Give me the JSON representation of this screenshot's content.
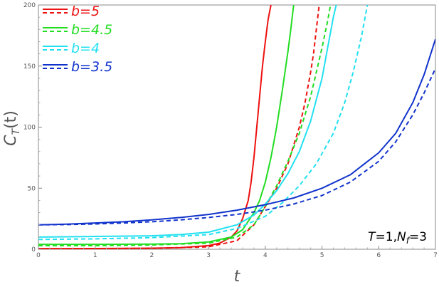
{
  "chart_data": {
    "type": "line",
    "title": "",
    "xlabel": "t",
    "ylabel": "C_T(t)",
    "ylabel_parts": {
      "main": "C",
      "sub": "T",
      "arg": "(t)"
    },
    "xlim": [
      0,
      7
    ],
    "ylim": [
      0,
      200
    ],
    "x_ticks": [
      0,
      1,
      2,
      3,
      4,
      5,
      6,
      7
    ],
    "x_tick_labels": [
      "0",
      "1",
      "2",
      "3",
      "4",
      "5",
      "6",
      "7"
    ],
    "y_ticks": [
      0,
      50,
      100,
      150,
      200
    ],
    "y_tick_labels": [
      "0",
      "50",
      "100",
      "150",
      "200"
    ],
    "grid": false,
    "legend_position": "top-left",
    "annotation": "T=1,N_f=3",
    "annotation_parts": {
      "a": "T",
      "b": "=1,",
      "c": "N",
      "d": "f",
      "e": "=3"
    },
    "series": [
      {
        "name": "b=5",
        "color": "#ee1111",
        "style": "solid",
        "x": [
          0,
          0.5,
          1,
          1.5,
          2,
          2.5,
          3,
          3.2,
          3.4,
          3.5,
          3.6,
          3.7,
          3.75,
          3.8,
          3.85,
          3.9,
          3.95,
          4.0,
          4.05,
          4.1
        ],
        "y": [
          0.5,
          0.5,
          0.6,
          0.7,
          0.9,
          1.3,
          3,
          5,
          10,
          15,
          25,
          40,
          55,
          75,
          100,
          125,
          150,
          170,
          188,
          200
        ]
      },
      {
        "name": "b=5",
        "color": "#ee1111",
        "style": "dashed",
        "x": [
          0,
          1,
          2,
          3,
          3.5,
          3.8,
          4.0,
          4.2,
          4.4,
          4.5,
          4.6,
          4.7,
          4.8,
          4.85,
          4.9,
          4.95
        ],
        "y": [
          0.4,
          0.5,
          0.7,
          2,
          7,
          20,
          35,
          50,
          70,
          85,
          100,
          120,
          145,
          160,
          180,
          200
        ]
      },
      {
        "name": "b=4.5",
        "color": "#22dd22",
        "style": "solid",
        "x": [
          0,
          1,
          2,
          2.5,
          3,
          3.4,
          3.6,
          3.8,
          3.9,
          4.0,
          4.1,
          4.2,
          4.3,
          4.4,
          4.45,
          4.5
        ],
        "y": [
          4,
          4,
          4.2,
          4.5,
          6,
          10,
          16,
          30,
          40,
          55,
          75,
          100,
          130,
          162,
          180,
          200
        ]
      },
      {
        "name": "b=4.5",
        "color": "#22dd22",
        "style": "dashed",
        "x": [
          0,
          1,
          2,
          3,
          3.5,
          3.8,
          4.0,
          4.2,
          4.4,
          4.6,
          4.8,
          4.9,
          5.0,
          5.1,
          5.15
        ],
        "y": [
          3,
          3,
          3.5,
          5,
          10,
          20,
          35,
          52,
          72,
          95,
          125,
          145,
          165,
          187,
          200
        ]
      },
      {
        "name": "b=4",
        "color": "#22e0f0",
        "style": "solid",
        "x": [
          0,
          1,
          2,
          2.5,
          3,
          3.5,
          3.8,
          4.0,
          4.2,
          4.4,
          4.6,
          4.8,
          5.0,
          5.1,
          5.2,
          5.25
        ],
        "y": [
          10,
          10.5,
          11,
          12,
          14,
          20,
          28,
          37,
          48,
          62,
          80,
          105,
          140,
          165,
          190,
          200
        ]
      },
      {
        "name": "b=4",
        "color": "#22e0f0",
        "style": "dashed",
        "x": [
          0,
          1,
          2,
          3,
          3.5,
          4.0,
          4.3,
          4.6,
          4.9,
          5.2,
          5.4,
          5.55,
          5.7,
          5.8
        ],
        "y": [
          8,
          8.5,
          9.5,
          12,
          17,
          27,
          38,
          52,
          70,
          95,
          120,
          145,
          175,
          200
        ]
      },
      {
        "name": "b=3.5",
        "color": "#1133cc",
        "style": "solid",
        "x": [
          0,
          0.5,
          1,
          1.5,
          2,
          2.5,
          3,
          3.5,
          4,
          4.5,
          5,
          5.5,
          6,
          6.3,
          6.6,
          6.8,
          7
        ],
        "y": [
          20,
          20.5,
          21.5,
          22.5,
          24,
          26,
          28.5,
          32,
          36.5,
          42,
          50,
          61,
          79,
          95,
          120,
          143,
          172
        ]
      },
      {
        "name": "b=3.5",
        "color": "#1133cc",
        "style": "dashed",
        "x": [
          0,
          0.5,
          1,
          1.5,
          2,
          2.5,
          3,
          3.5,
          4,
          4.5,
          5,
          5.5,
          6,
          6.3,
          6.6,
          6.8,
          7
        ],
        "y": [
          20,
          20.2,
          20.7,
          21.5,
          22.5,
          24,
          26,
          28.5,
          32,
          37,
          44,
          55,
          72,
          88,
          110,
          128,
          148
        ]
      }
    ],
    "legend": [
      {
        "label": "b=5",
        "color": "#ee1111"
      },
      {
        "label": "b=4.5",
        "color": "#22dd22"
      },
      {
        "label": "b=4",
        "color": "#22e0f0"
      },
      {
        "label": "b=3.5",
        "color": "#1133cc"
      }
    ]
  }
}
